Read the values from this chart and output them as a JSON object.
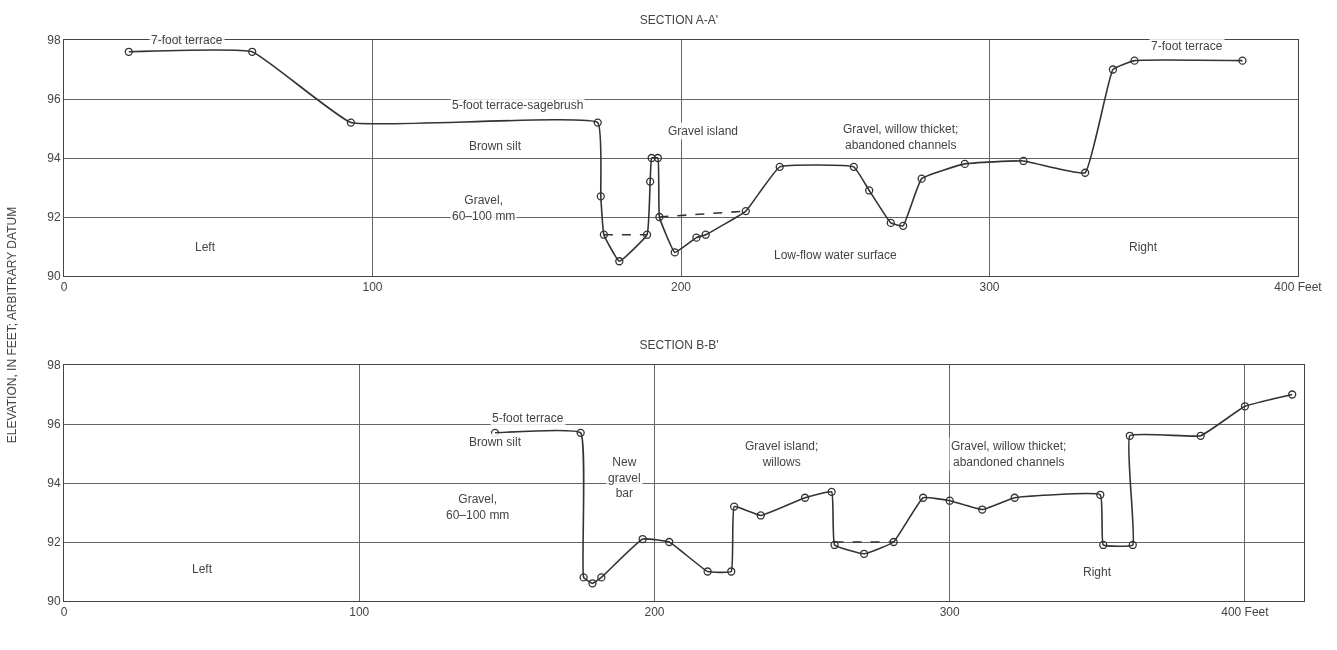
{
  "chart_data": [
    {
      "type": "line",
      "title": "SECTION A-A'",
      "ylabel": "ELEVATION, IN FEET; ARBITRARY DATUM",
      "marker": "circle",
      "grid": true,
      "xlim": [
        0,
        400
      ],
      "ylim": [
        90,
        98
      ],
      "xticks": [
        0,
        100,
        200,
        300,
        {
          "value": 400,
          "label": "400 Feet"
        }
      ],
      "yticks": [
        90,
        92,
        94,
        96,
        98
      ],
      "series": [
        {
          "color": "#333333",
          "x": [
            21,
            61,
            93,
            173,
            174,
            175,
            180,
            189,
            190,
            190.5,
            192.5,
            193,
            198,
            205,
            208,
            221,
            232,
            256,
            261,
            268,
            272,
            278,
            292,
            311,
            331,
            340,
            347,
            382
          ],
          "values": [
            97.6,
            97.6,
            95.2,
            95.2,
            92.7,
            91.4,
            90.5,
            91.4,
            93.2,
            94.0,
            94.0,
            92.0,
            90.8,
            91.3,
            91.4,
            92.2,
            93.7,
            93.7,
            92.9,
            91.8,
            91.7,
            93.3,
            93.8,
            93.9,
            93.5,
            97.0,
            97.3,
            97.3
          ]
        },
        {
          "color": "#333333",
          "line_style": "dashed",
          "marker": "none",
          "x": [
            175,
            189,
            191,
            193,
            221
          ],
          "values": [
            91.4,
            91.4,
            null,
            92.0,
            92.2
          ]
        }
      ],
      "annotations": [
        "7-foot terrace",
        "7-foot terrace",
        "5-foot terrace-sagebrush",
        "Brown silt",
        "Gravel,\n60–100 mm",
        "Gravel island",
        "Gravel, willow thicket;\nabandoned channels",
        "Low-flow water surface",
        "Left",
        "Right"
      ]
    },
    {
      "type": "line",
      "title": "SECTION B-B'",
      "marker": "circle",
      "grid": true,
      "xlim": [
        0,
        420
      ],
      "ylim": [
        90,
        98
      ],
      "xticks": [
        0,
        100,
        200,
        300,
        {
          "value": 400,
          "label": "400 Feet"
        }
      ],
      "yticks": [
        90,
        92,
        94,
        96,
        98
      ],
      "series": [
        {
          "color": "#333333",
          "x": [
            146,
            175,
            176,
            179,
            182,
            196,
            205,
            218,
            226,
            227,
            236,
            251,
            260,
            261,
            271,
            281,
            291,
            300,
            311,
            322,
            351,
            352,
            362,
            361,
            385,
            400,
            416
          ],
          "values": [
            95.7,
            95.7,
            90.8,
            90.6,
            90.8,
            92.1,
            92.0,
            91.0,
            91.0,
            93.2,
            92.9,
            93.5,
            93.7,
            91.9,
            91.6,
            92.0,
            93.5,
            93.4,
            93.1,
            93.5,
            93.6,
            91.9,
            91.9,
            95.6,
            95.6,
            96.6,
            97.0
          ]
        },
        {
          "color": "#333333",
          "line_style": "dashed",
          "marker": "none",
          "x": [
            261,
            281
          ],
          "values": [
            92.0,
            92.0
          ]
        }
      ],
      "annotations": [
        "5-foot terrace",
        "Brown silt",
        "Gravel,\n60–100 mm",
        "New\ngravel\nbar",
        "Gravel island;\nwillows",
        "Gravel, willow thicket;\nabandoned channels",
        "Left",
        "Right"
      ]
    }
  ]
}
